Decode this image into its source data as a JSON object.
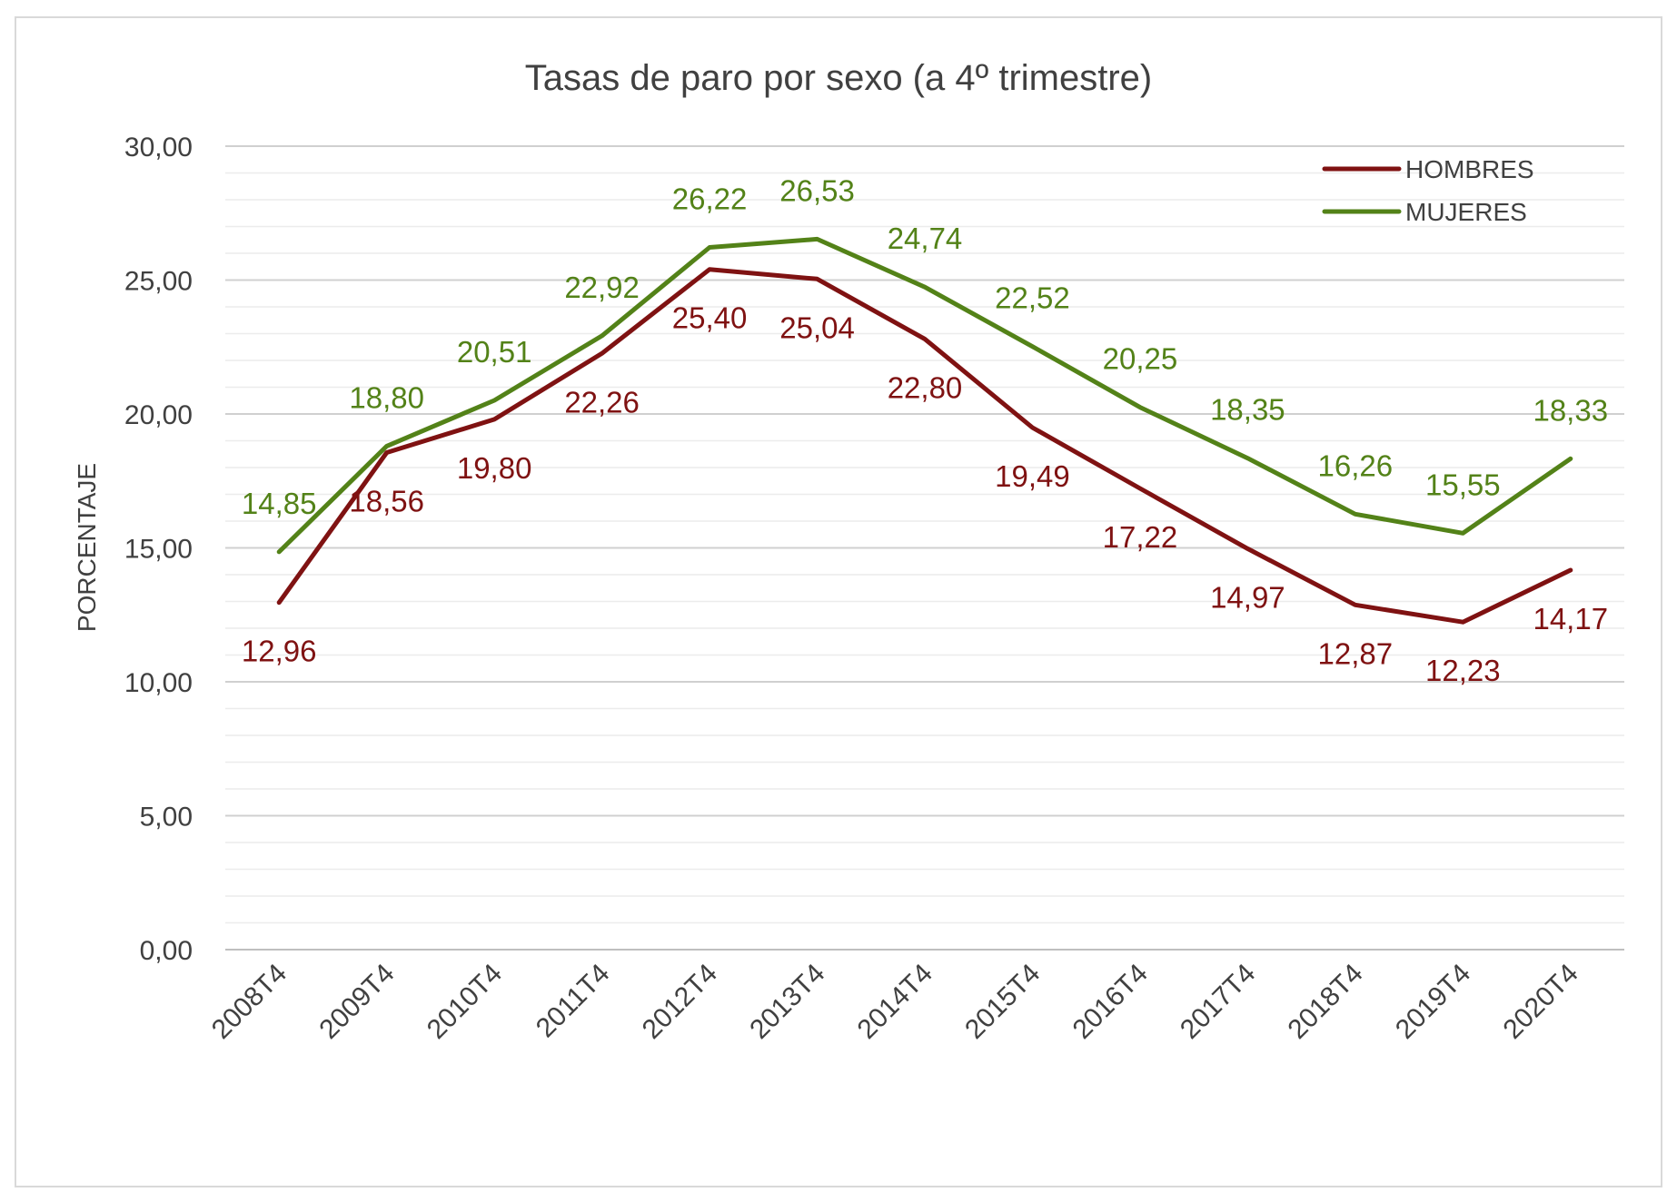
{
  "chart_data": {
    "type": "line",
    "title": "Tasas de paro por sexo (a 4º trimestre)",
    "xlabel": "",
    "ylabel": "PORCENTAJE",
    "ylim": [
      0,
      30
    ],
    "yticks": [
      "0,00",
      "5,00",
      "10,00",
      "15,00",
      "20,00",
      "25,00",
      "30,00"
    ],
    "grid": true,
    "legend_position": "top-right",
    "categories": [
      "2008T4",
      "2009T4",
      "2010T4",
      "2011T4",
      "2012T4",
      "2013T4",
      "2014T4",
      "2015T4",
      "2016T4",
      "2017T4",
      "2018T4",
      "2019T4",
      "2020T4"
    ],
    "series": [
      {
        "name": "HOMBRES",
        "color": "#7f1212",
        "values": [
          12.96,
          18.56,
          19.8,
          22.26,
          25.4,
          25.04,
          22.8,
          19.49,
          17.22,
          14.97,
          12.87,
          12.23,
          14.17
        ],
        "labels": [
          "12,96",
          "18,56",
          "19,80",
          "22,26",
          "25,40",
          "25,04",
          "22,80",
          "19,49",
          "17,22",
          "14,97",
          "12,87",
          "12,23",
          "14,17"
        ]
      },
      {
        "name": "MUJERES",
        "color": "#538218",
        "values": [
          14.85,
          18.8,
          20.51,
          22.92,
          26.22,
          26.53,
          24.74,
          22.52,
          20.25,
          18.35,
          16.26,
          15.55,
          18.33
        ],
        "labels": [
          "14,85",
          "18,80",
          "20,51",
          "22,92",
          "26,22",
          "26,53",
          "24,74",
          "22,52",
          "20,25",
          "18,35",
          "16,26",
          "15,55",
          "18,33"
        ]
      }
    ]
  }
}
